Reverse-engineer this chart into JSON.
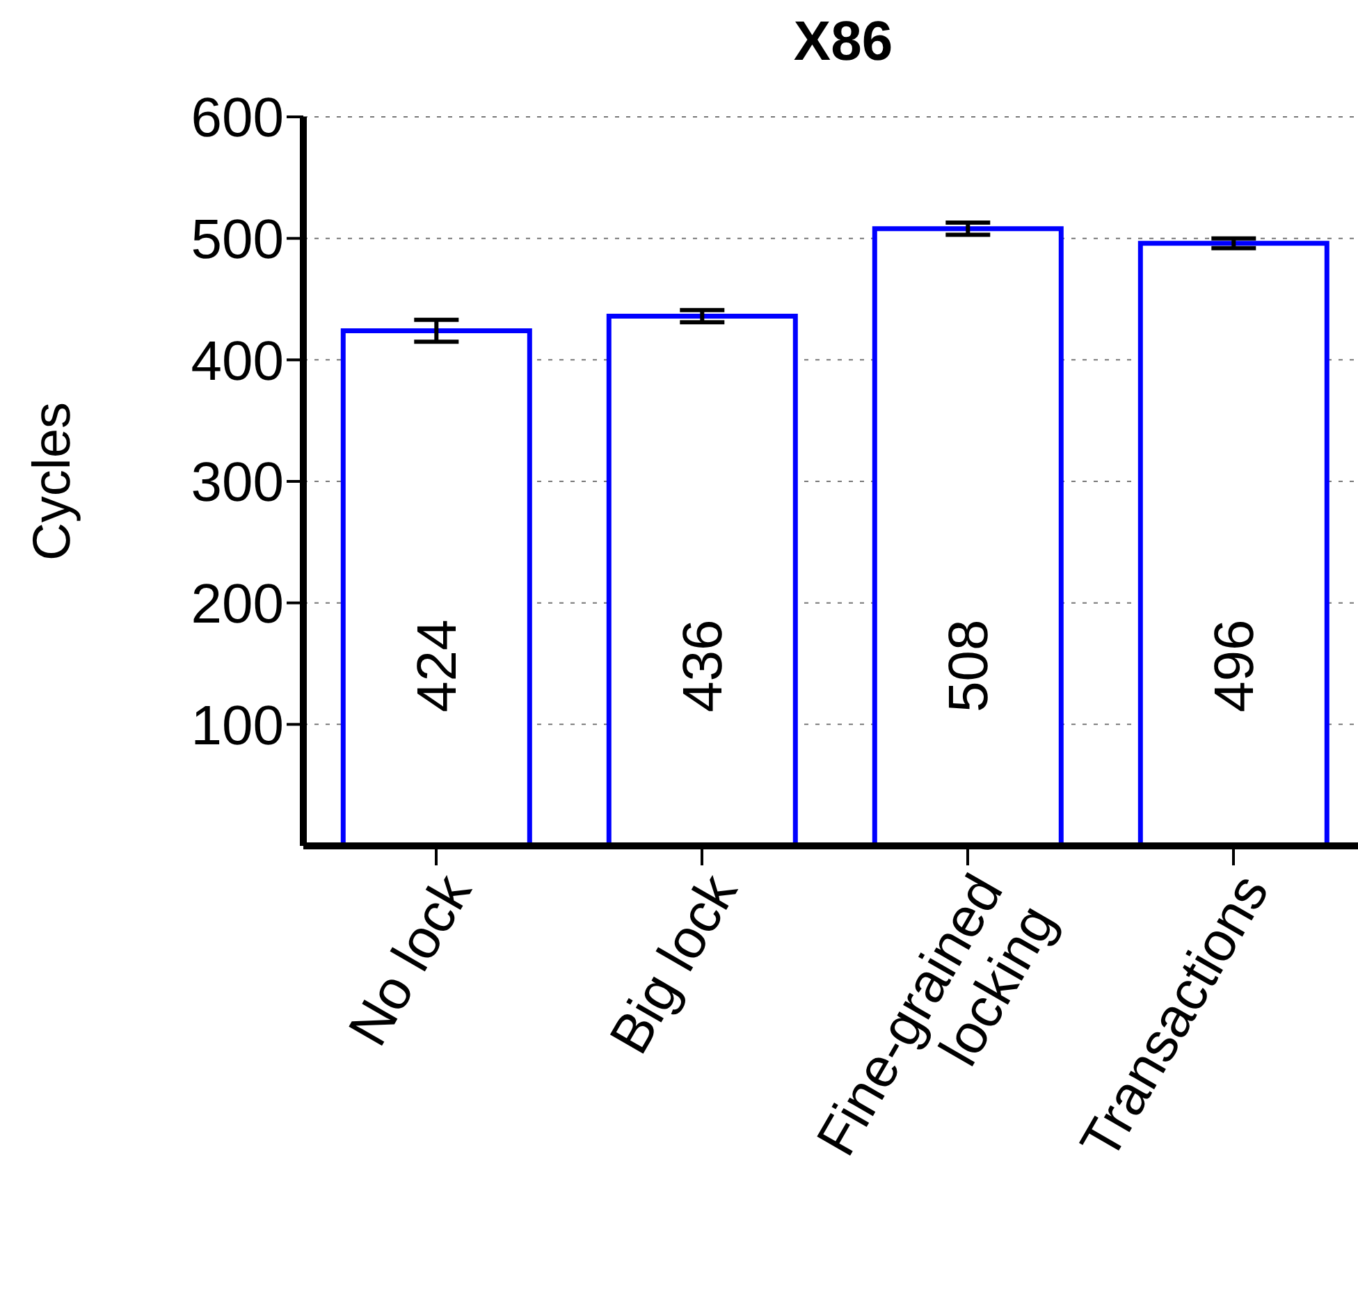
{
  "chart_data": {
    "type": "bar",
    "title": "X86",
    "ylabel": "Cycles",
    "categories": [
      "No lock",
      "Big lock",
      "Fine-grained\nlocking",
      "Transactions"
    ],
    "values": [
      424,
      436,
      508,
      496
    ],
    "errors": [
      9,
      5,
      5,
      4
    ],
    "color": "#0000ff",
    "ylim": [
      0,
      600
    ],
    "yticks": [
      100,
      200,
      300,
      400,
      500,
      600
    ],
    "grid": "y",
    "data_labels": true
  }
}
